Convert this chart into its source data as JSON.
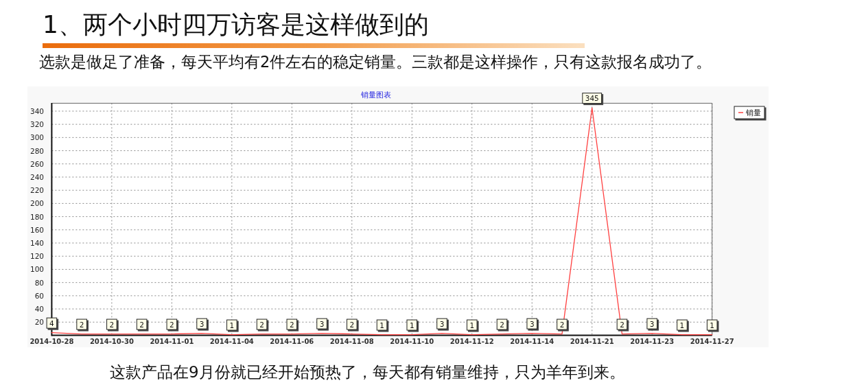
{
  "chart_data": {
    "type": "line",
    "title": "销量图表",
    "annotations": [
      "1、两个小时四万访客是这样做到的",
      "选款是做足了准备，每天平均有2件左右的稳定销量。三款都是这样操作，只有这款报名成功了。",
      "这款产品在9月份就已经开始预热了，每天都有销量维持，只为羊年到来。"
    ],
    "categories": [
      "2014-10-28",
      null,
      "2014-10-30",
      null,
      "2014-11-01",
      null,
      "2014-11-04",
      null,
      "2014-11-06",
      null,
      "2014-11-08",
      null,
      "2014-11-10",
      null,
      "2014-11-12",
      null,
      "2014-11-14",
      null,
      "2014-11-21",
      null,
      "2014-11-23",
      null,
      "2014-11-27"
    ],
    "series": [
      {
        "name": "销量",
        "color": "#ff4040",
        "values": [
          4,
          2,
          2,
          2,
          2,
          3,
          1,
          2,
          2,
          3,
          2,
          1,
          1,
          3,
          1,
          2,
          3,
          2,
          345,
          2,
          3,
          1,
          1
        ]
      }
    ],
    "ylim": [
      0,
      352
    ],
    "yticks": [
      20,
      40,
      60,
      80,
      100,
      120,
      140,
      160,
      180,
      200,
      220,
      240,
      260,
      280,
      300,
      320,
      340
    ],
    "grid": true,
    "legend": "top right",
    "marker": "none",
    "line_style": "solid",
    "data_labels": true
  }
}
